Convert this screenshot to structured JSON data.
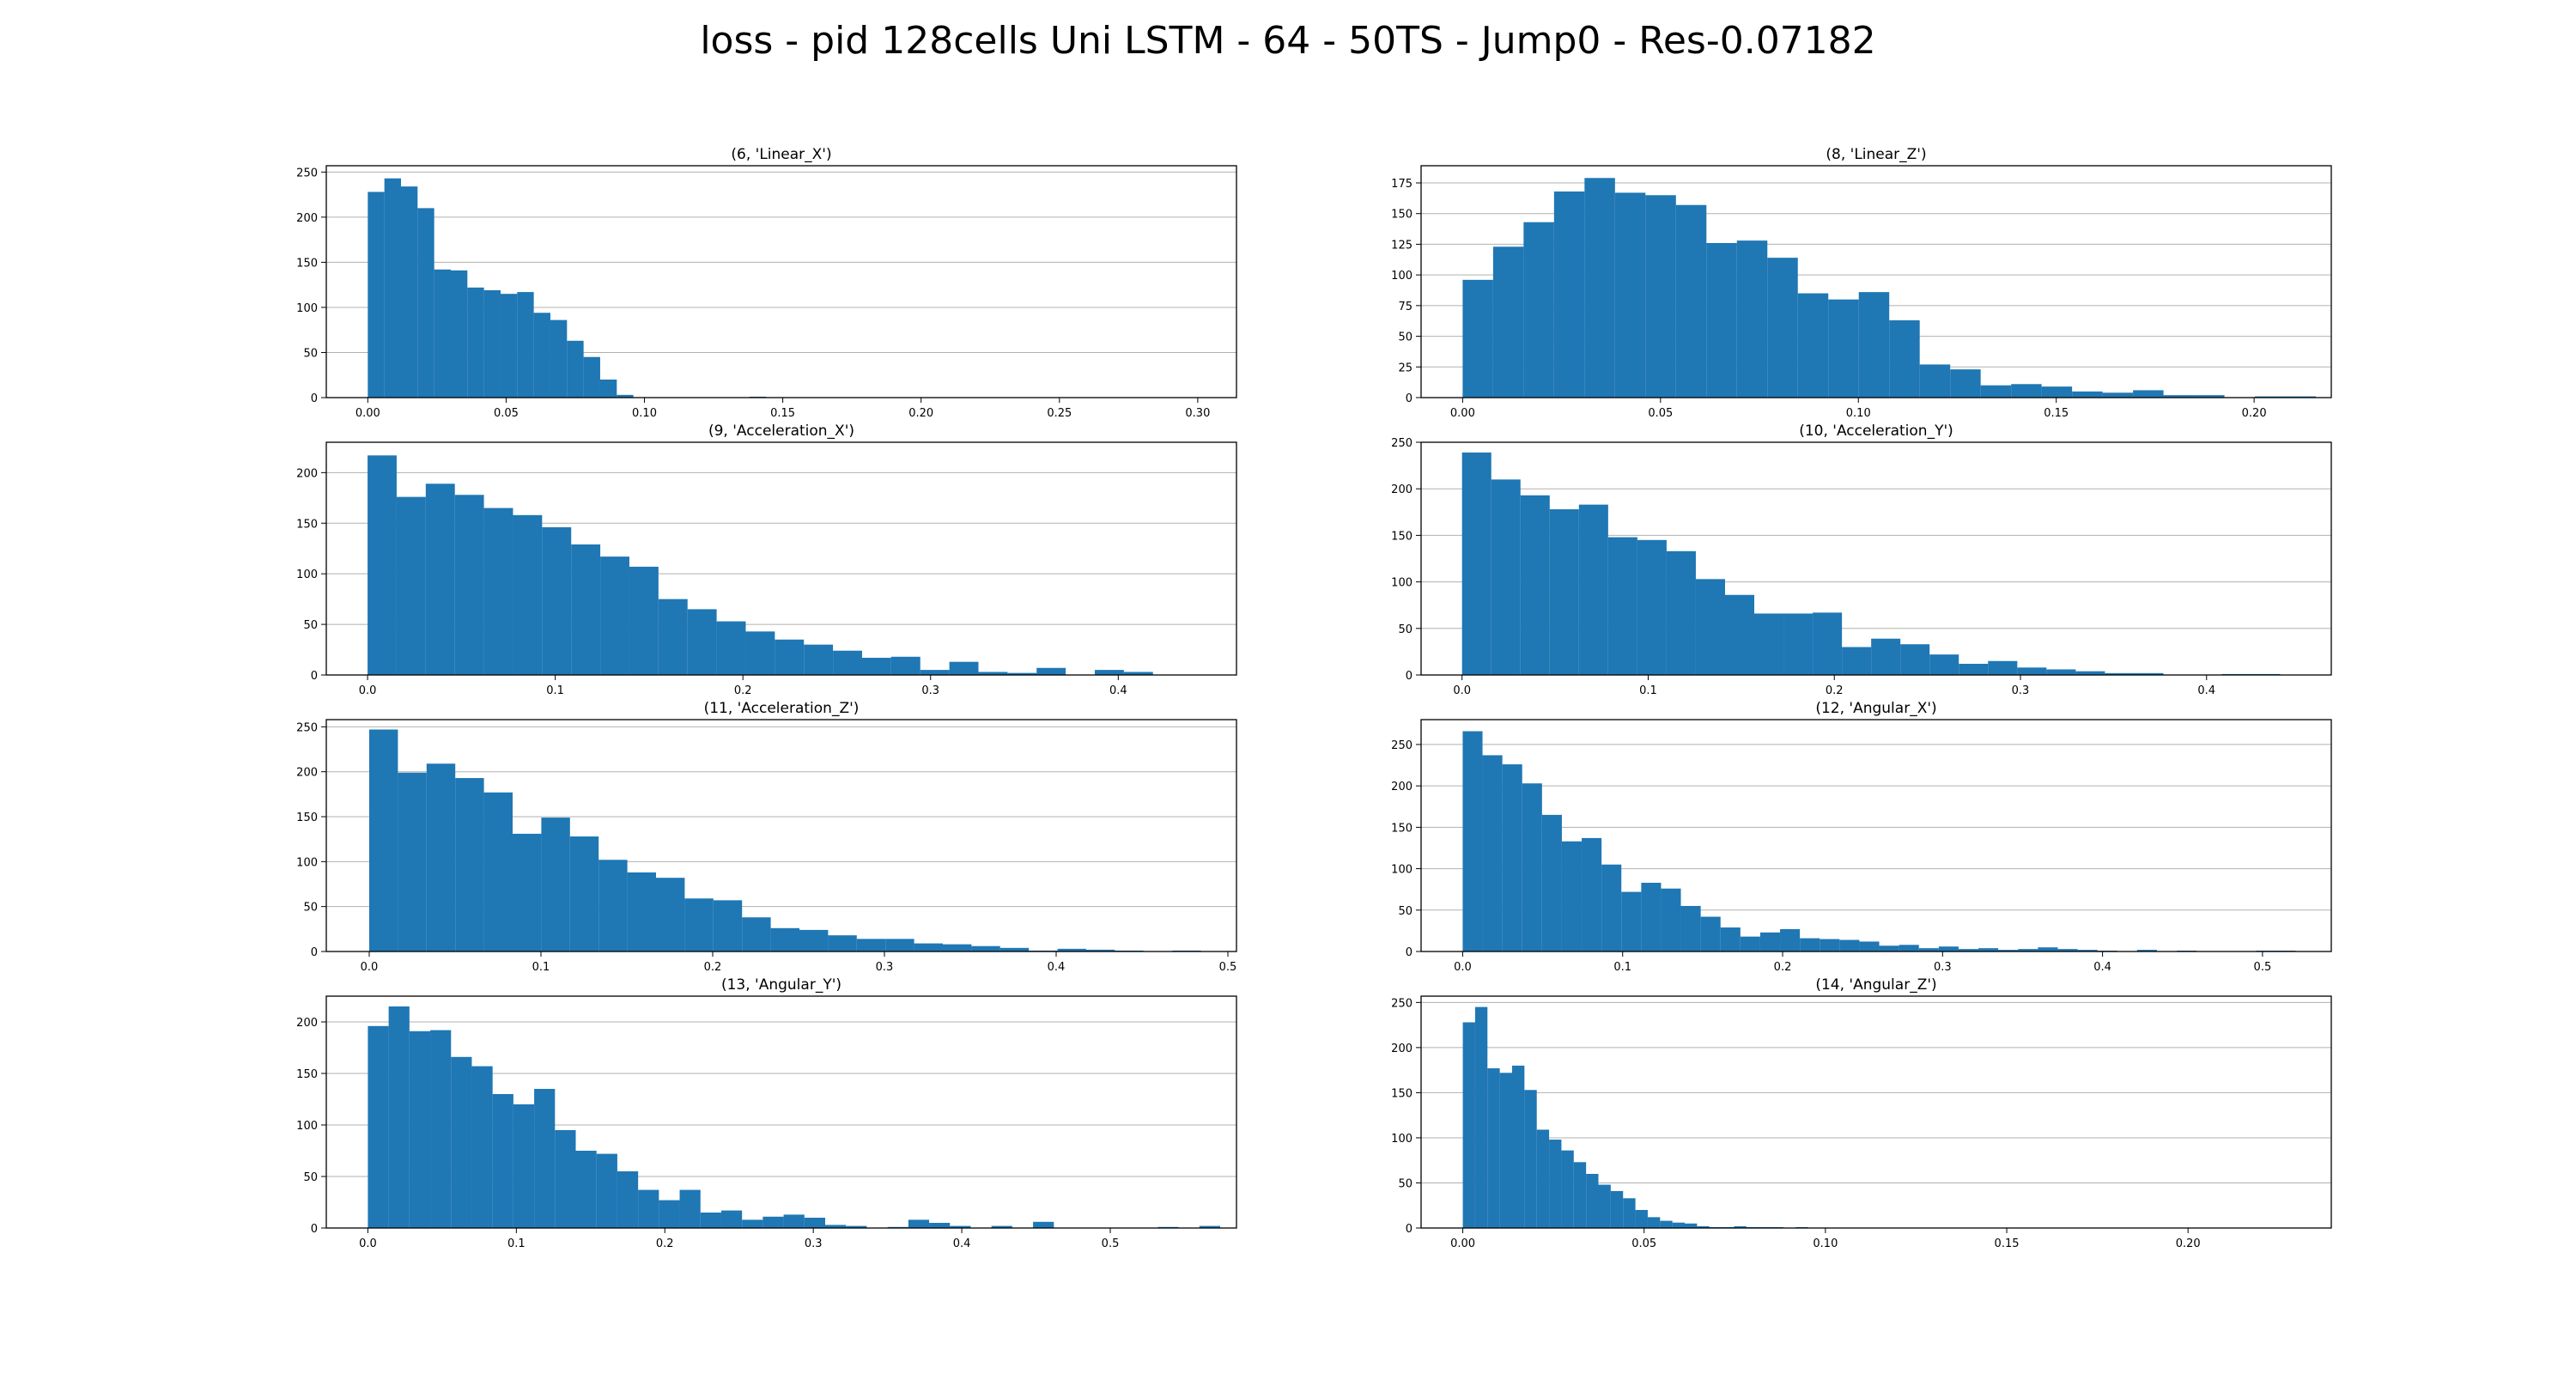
{
  "title": "loss - pid 128cells Uni LSTM  - 64 - 50TS - Jump0 - Res-0.07182",
  "colors": {
    "bar": "#1f77b4",
    "grid": "#b0b0b0",
    "axis": "#000000"
  },
  "chart_data": [
    {
      "type": "bar",
      "title": "(6, 'Linear_X')",
      "grid": "y",
      "xlim": [
        -0.015,
        0.314
      ],
      "ylim": [
        0,
        257
      ],
      "xticks": [
        0.0,
        0.05,
        0.1,
        0.15,
        0.2,
        0.25,
        0.3
      ],
      "xtick_labels": [
        "0.00",
        "0.05",
        "0.10",
        "0.15",
        "0.20",
        "0.25",
        "0.30"
      ],
      "yticks": [
        0,
        50,
        100,
        150,
        200,
        250
      ],
      "ytick_labels": [
        "0",
        "50",
        "100",
        "150",
        "200",
        "250"
      ],
      "bin_start": 0.0,
      "bin_width": 0.006,
      "values": [
        228,
        243,
        234,
        210,
        142,
        141,
        122,
        119,
        115,
        117,
        94,
        86,
        63,
        45,
        20,
        3,
        0,
        0,
        0,
        0,
        0,
        0,
        0,
        1,
        0,
        0,
        0,
        0,
        0,
        0,
        0,
        0,
        0,
        0,
        0,
        0,
        0,
        0,
        0,
        0,
        0,
        0,
        0,
        0,
        0,
        0,
        0,
        0,
        0,
        0,
        0,
        0,
        0,
        0,
        0,
        0,
        0,
        0,
        0,
        0,
        0,
        0,
        0,
        0,
        0,
        0,
        0,
        0,
        0,
        0,
        0,
        1,
        1,
        1,
        0,
        0,
        0,
        0,
        0,
        1,
        1,
        0
      ]
    },
    {
      "type": "bar",
      "title": "(8, 'Linear_Z')",
      "grid": "y",
      "xlim": [
        -0.0105,
        0.2195
      ],
      "ylim": [
        0,
        189
      ],
      "xticks": [
        0.0,
        0.05,
        0.1,
        0.15,
        0.2
      ],
      "xtick_labels": [
        "0.00",
        "0.05",
        "0.10",
        "0.15",
        "0.20"
      ],
      "yticks": [
        0,
        25,
        50,
        75,
        100,
        125,
        150,
        175
      ],
      "ytick_labels": [
        "0",
        "25",
        "50",
        "75",
        "100",
        "125",
        "150",
        "175"
      ],
      "bin_start": 0.0,
      "bin_width": 0.0077,
      "values": [
        96,
        123,
        143,
        168,
        179,
        167,
        165,
        157,
        126,
        128,
        114,
        85,
        80,
        86,
        63,
        27,
        23,
        10,
        11,
        9,
        5,
        4,
        6,
        2,
        2,
        0,
        1,
        1
      ]
    },
    {
      "type": "bar",
      "title": "(9, 'Acceleration_X')",
      "grid": "y",
      "xlim": [
        -0.022,
        0.463
      ],
      "ylim": [
        0,
        230
      ],
      "xticks": [
        0.0,
        0.1,
        0.2,
        0.3,
        0.4
      ],
      "xtick_labels": [
        "0.0",
        "0.1",
        "0.2",
        "0.3",
        "0.4"
      ],
      "yticks": [
        0,
        50,
        100,
        150,
        200
      ],
      "ytick_labels": [
        "0",
        "50",
        "100",
        "150",
        "200"
      ],
      "bin_start": 0.0,
      "bin_width": 0.0155,
      "values": [
        217,
        176,
        189,
        178,
        165,
        158,
        146,
        129,
        117,
        107,
        75,
        65,
        53,
        43,
        35,
        30,
        24,
        17,
        18,
        5,
        13,
        3,
        2,
        7,
        0,
        5,
        3
      ]
    },
    {
      "type": "bar",
      "title": "(10, 'Acceleration_Y')",
      "grid": "y",
      "xlim": [
        -0.022,
        0.467
      ],
      "ylim": [
        0,
        250
      ],
      "xticks": [
        0.0,
        0.1,
        0.2,
        0.3,
        0.4
      ],
      "xtick_labels": [
        "0.0",
        "0.1",
        "0.2",
        "0.3",
        "0.4"
      ],
      "yticks": [
        0,
        50,
        100,
        150,
        200,
        250
      ],
      "ytick_labels": [
        "0",
        "50",
        "100",
        "150",
        "200",
        "250"
      ],
      "bin_start": 0.0,
      "bin_width": 0.0157,
      "values": [
        239,
        210,
        193,
        178,
        183,
        148,
        145,
        133,
        103,
        86,
        66,
        66,
        67,
        30,
        39,
        33,
        22,
        12,
        15,
        8,
        6,
        4,
        2,
        2,
        0,
        0,
        1,
        1
      ]
    },
    {
      "type": "bar",
      "title": "(11, 'Acceleration_Z')",
      "grid": "y",
      "xlim": [
        -0.025,
        0.505
      ],
      "ylim": [
        0,
        258
      ],
      "xticks": [
        0.0,
        0.1,
        0.2,
        0.3,
        0.4,
        0.5
      ],
      "xtick_labels": [
        "0.0",
        "0.1",
        "0.2",
        "0.3",
        "0.4",
        "0.5"
      ],
      "yticks": [
        0,
        50,
        100,
        150,
        200,
        250
      ],
      "ytick_labels": [
        "0",
        "50",
        "100",
        "150",
        "200",
        "250"
      ],
      "bin_start": 0.0,
      "bin_width": 0.0167,
      "values": [
        247,
        199,
        209,
        193,
        177,
        131,
        149,
        128,
        102,
        88,
        82,
        59,
        57,
        38,
        26,
        24,
        18,
        14,
        14,
        9,
        8,
        6,
        4,
        1,
        3,
        2,
        1,
        0,
        1
      ]
    },
    {
      "type": "bar",
      "title": "(12, 'Angular_X')",
      "grid": "y",
      "xlim": [
        -0.026,
        0.543
      ],
      "ylim": [
        0,
        280
      ],
      "xticks": [
        0.0,
        0.1,
        0.2,
        0.3,
        0.4,
        0.5
      ],
      "xtick_labels": [
        "0.0",
        "0.1",
        "0.2",
        "0.3",
        "0.4",
        "0.5"
      ],
      "yticks": [
        0,
        50,
        100,
        150,
        200,
        250
      ],
      "ytick_labels": [
        "0",
        "50",
        "100",
        "150",
        "200",
        "250"
      ],
      "bin_start": 0.0,
      "bin_width": 0.0124,
      "values": [
        266,
        237,
        226,
        203,
        165,
        133,
        137,
        105,
        72,
        83,
        76,
        55,
        42,
        29,
        18,
        23,
        27,
        16,
        15,
        14,
        12,
        7,
        8,
        4,
        6,
        3,
        4,
        2,
        3,
        5,
        3,
        2,
        1,
        0,
        2,
        0,
        1,
        0,
        0,
        0,
        1,
        1
      ]
    },
    {
      "type": "bar",
      "title": "(13, 'Angular_Y')",
      "grid": "y",
      "xlim": [
        -0.028,
        0.585
      ],
      "ylim": [
        0,
        225
      ],
      "xticks": [
        0.0,
        0.1,
        0.2,
        0.3,
        0.4,
        0.5
      ],
      "xtick_labels": [
        "0.0",
        "0.1",
        "0.2",
        "0.3",
        "0.4",
        "0.5"
      ],
      "yticks": [
        0,
        50,
        100,
        150,
        200
      ],
      "ytick_labels": [
        "0",
        "50",
        "100",
        "150",
        "200"
      ],
      "bin_start": 0.0,
      "bin_width": 0.014,
      "values": [
        196,
        215,
        191,
        192,
        166,
        157,
        130,
        120,
        135,
        95,
        75,
        72,
        55,
        37,
        27,
        37,
        15,
        17,
        8,
        11,
        13,
        10,
        3,
        2,
        0,
        1,
        8,
        5,
        2,
        0,
        2,
        0,
        6,
        0,
        0,
        0,
        0,
        0,
        1,
        0,
        2
      ]
    },
    {
      "type": "bar",
      "title": "(14, 'Angular_Z')",
      "grid": "y",
      "xlim": [
        -0.0115,
        0.2395
      ],
      "ylim": [
        0,
        257
      ],
      "xticks": [
        0.0,
        0.05,
        0.1,
        0.15,
        0.2
      ],
      "xtick_labels": [
        "0.00",
        "0.05",
        "0.10",
        "0.15",
        "0.20"
      ],
      "yticks": [
        0,
        50,
        100,
        150,
        200,
        250
      ],
      "ytick_labels": [
        "0",
        "50",
        "100",
        "150",
        "200",
        "250"
      ],
      "bin_start": 0.0,
      "bin_width": 0.0034,
      "values": [
        228,
        245,
        177,
        172,
        180,
        153,
        109,
        98,
        86,
        73,
        60,
        48,
        41,
        33,
        20,
        12,
        8,
        6,
        5,
        2,
        1,
        1,
        2,
        1,
        1,
        1,
        0,
        1,
        0,
        0,
        0,
        0,
        0,
        0,
        0,
        0,
        0,
        0,
        0,
        0,
        0,
        0,
        0,
        0,
        0,
        0,
        0,
        0,
        0,
        0,
        0,
        0,
        0,
        0,
        0,
        0,
        0,
        0,
        0,
        0,
        0,
        0,
        0,
        0,
        0,
        0,
        0,
        0,
        0,
        0,
        0,
        0,
        0,
        0,
        0,
        0,
        0,
        0,
        0,
        0,
        0,
        0,
        0,
        0,
        0,
        0,
        0,
        0,
        0,
        0,
        0,
        0,
        0,
        0,
        0,
        0,
        0,
        0,
        0,
        0,
        0,
        0,
        0,
        0,
        0,
        0,
        0,
        0,
        0,
        0,
        0,
        0,
        0,
        0,
        0,
        0,
        0,
        0,
        0,
        0,
        0,
        0,
        0,
        0,
        0,
        0,
        0,
        0,
        0,
        0,
        0,
        0,
        0,
        0,
        0,
        0,
        0,
        0,
        0,
        0,
        0,
        0,
        0,
        0,
        0,
        0,
        0,
        0,
        0,
        0,
        0,
        0,
        0,
        0,
        0,
        0,
        0,
        0,
        0,
        0,
        0,
        0,
        0,
        0,
        0,
        0,
        0,
        0,
        0,
        0,
        1,
        0,
        0,
        0,
        0,
        0,
        0,
        0,
        0,
        0,
        0,
        0,
        0,
        0,
        0,
        0,
        0,
        1
      ]
    }
  ]
}
